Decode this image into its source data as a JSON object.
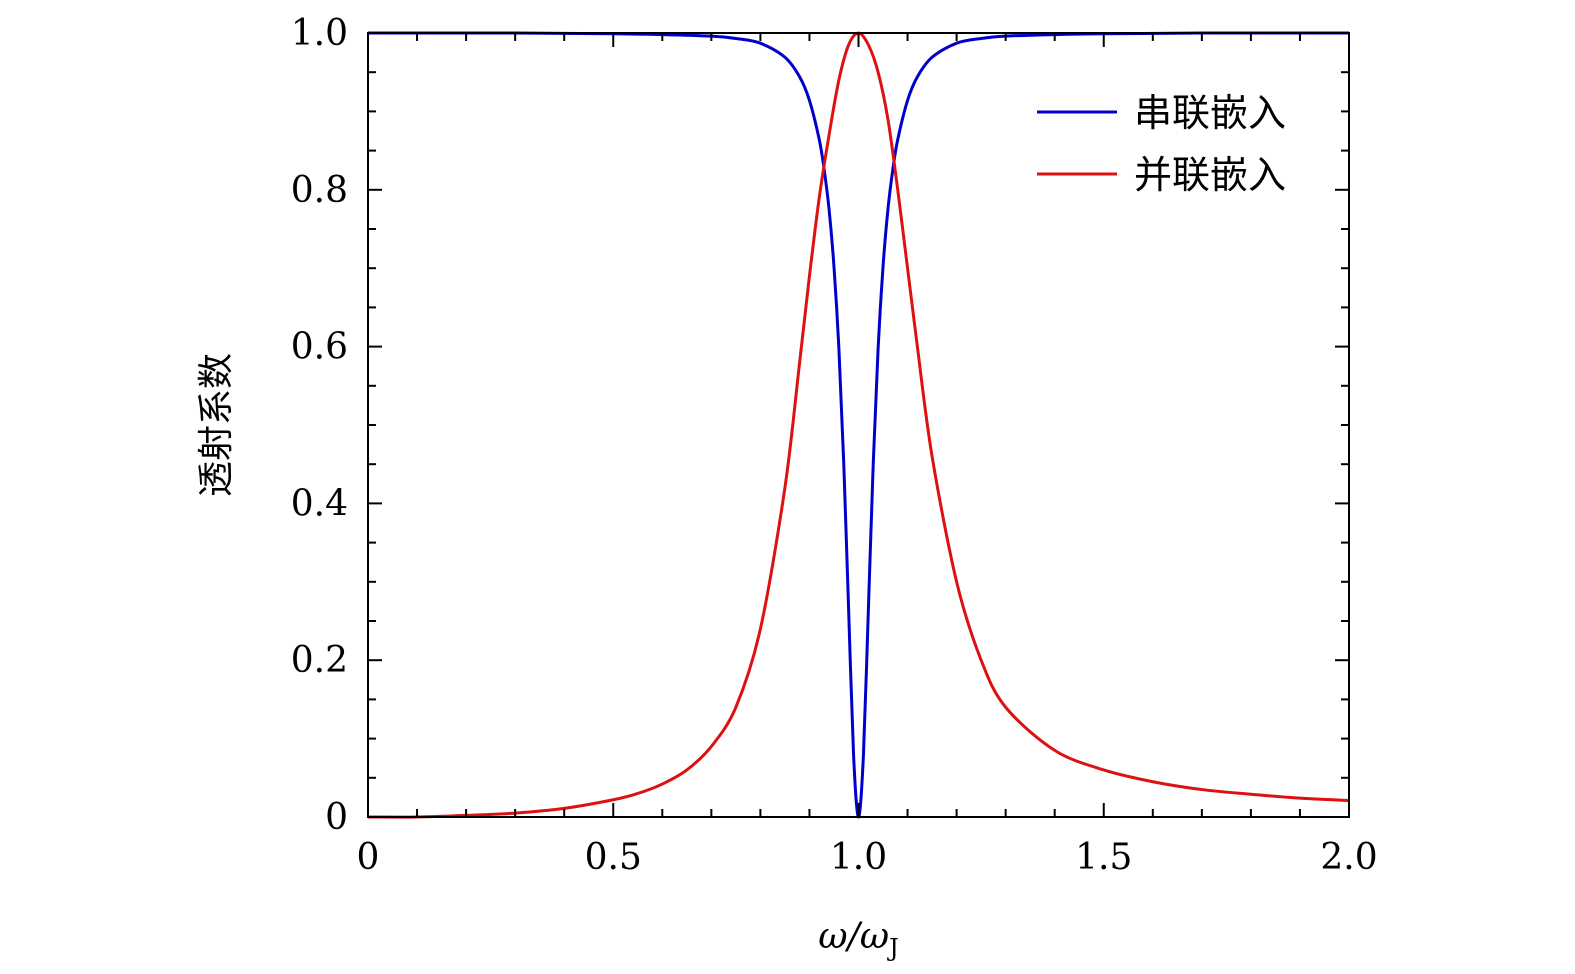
{
  "chart_data": {
    "type": "line",
    "xlabel": "ω/ωJ",
    "xlabel_main": "ω/ω",
    "xlabel_sub": "J",
    "ylabel": "透射系数",
    "xlim": [
      0,
      2.0
    ],
    "ylim": [
      0,
      1.0
    ],
    "x_ticks": [
      0,
      0.5,
      1.0,
      1.5,
      2.0
    ],
    "x_tick_labels": [
      "0",
      "0.5",
      "1.0",
      "1.5",
      "2.0"
    ],
    "y_ticks": [
      0,
      0.2,
      0.4,
      0.6,
      0.8,
      1.0
    ],
    "y_tick_labels": [
      "0",
      "0.2",
      "0.4",
      "0.6",
      "0.8",
      "1.0"
    ],
    "grid": false,
    "legend_position": "top-right",
    "series": [
      {
        "name": "串联嵌入",
        "color": "#0000cc",
        "points": [
          [
            0,
            1.0
          ],
          [
            0.3,
            1.0
          ],
          [
            0.5,
            0.999
          ],
          [
            0.6,
            0.998
          ],
          [
            0.7,
            0.996
          ],
          [
            0.75,
            0.993
          ],
          [
            0.8,
            0.987
          ],
          [
            0.85,
            0.969
          ],
          [
            0.88,
            0.944
          ],
          [
            0.9,
            0.914
          ],
          [
            0.92,
            0.864
          ],
          [
            0.93,
            0.826
          ],
          [
            0.94,
            0.775
          ],
          [
            0.95,
            0.702
          ],
          [
            0.96,
            0.598
          ],
          [
            0.97,
            0.45
          ],
          [
            0.98,
            0.262
          ],
          [
            0.99,
            0.078
          ],
          [
            1.0,
            0.0
          ],
          [
            1.01,
            0.078
          ],
          [
            1.02,
            0.262
          ],
          [
            1.03,
            0.45
          ],
          [
            1.04,
            0.598
          ],
          [
            1.05,
            0.702
          ],
          [
            1.06,
            0.775
          ],
          [
            1.07,
            0.826
          ],
          [
            1.08,
            0.864
          ],
          [
            1.1,
            0.914
          ],
          [
            1.12,
            0.944
          ],
          [
            1.15,
            0.969
          ],
          [
            1.2,
            0.987
          ],
          [
            1.25,
            0.993
          ],
          [
            1.3,
            0.996
          ],
          [
            1.4,
            0.998
          ],
          [
            1.5,
            0.999
          ],
          [
            1.7,
            1.0
          ],
          [
            2.0,
            1.0
          ]
        ]
      },
      {
        "name": "并联嵌入",
        "color": "#dd1111",
        "points": [
          [
            0,
            0.0
          ],
          [
            0.1,
            0.0
          ],
          [
            0.2,
            0.002
          ],
          [
            0.3,
            0.005
          ],
          [
            0.4,
            0.011
          ],
          [
            0.5,
            0.022
          ],
          [
            0.55,
            0.03
          ],
          [
            0.6,
            0.042
          ],
          [
            0.65,
            0.06
          ],
          [
            0.7,
            0.09
          ],
          [
            0.75,
            0.14
          ],
          [
            0.8,
            0.24
          ],
          [
            0.85,
            0.42
          ],
          [
            0.88,
            0.58
          ],
          [
            0.9,
            0.69
          ],
          [
            0.92,
            0.79
          ],
          [
            0.94,
            0.87
          ],
          [
            0.96,
            0.94
          ],
          [
            0.98,
            0.985
          ],
          [
            1.0,
            1.0
          ],
          [
            1.02,
            0.985
          ],
          [
            1.04,
            0.95
          ],
          [
            1.06,
            0.89
          ],
          [
            1.08,
            0.8
          ],
          [
            1.1,
            0.7
          ],
          [
            1.12,
            0.6
          ],
          [
            1.15,
            0.46
          ],
          [
            1.2,
            0.3
          ],
          [
            1.25,
            0.2
          ],
          [
            1.3,
            0.14
          ],
          [
            1.4,
            0.085
          ],
          [
            1.5,
            0.06
          ],
          [
            1.6,
            0.045
          ],
          [
            1.7,
            0.035
          ],
          [
            1.8,
            0.029
          ],
          [
            1.9,
            0.024
          ],
          [
            2.0,
            0.021
          ]
        ]
      }
    ]
  }
}
